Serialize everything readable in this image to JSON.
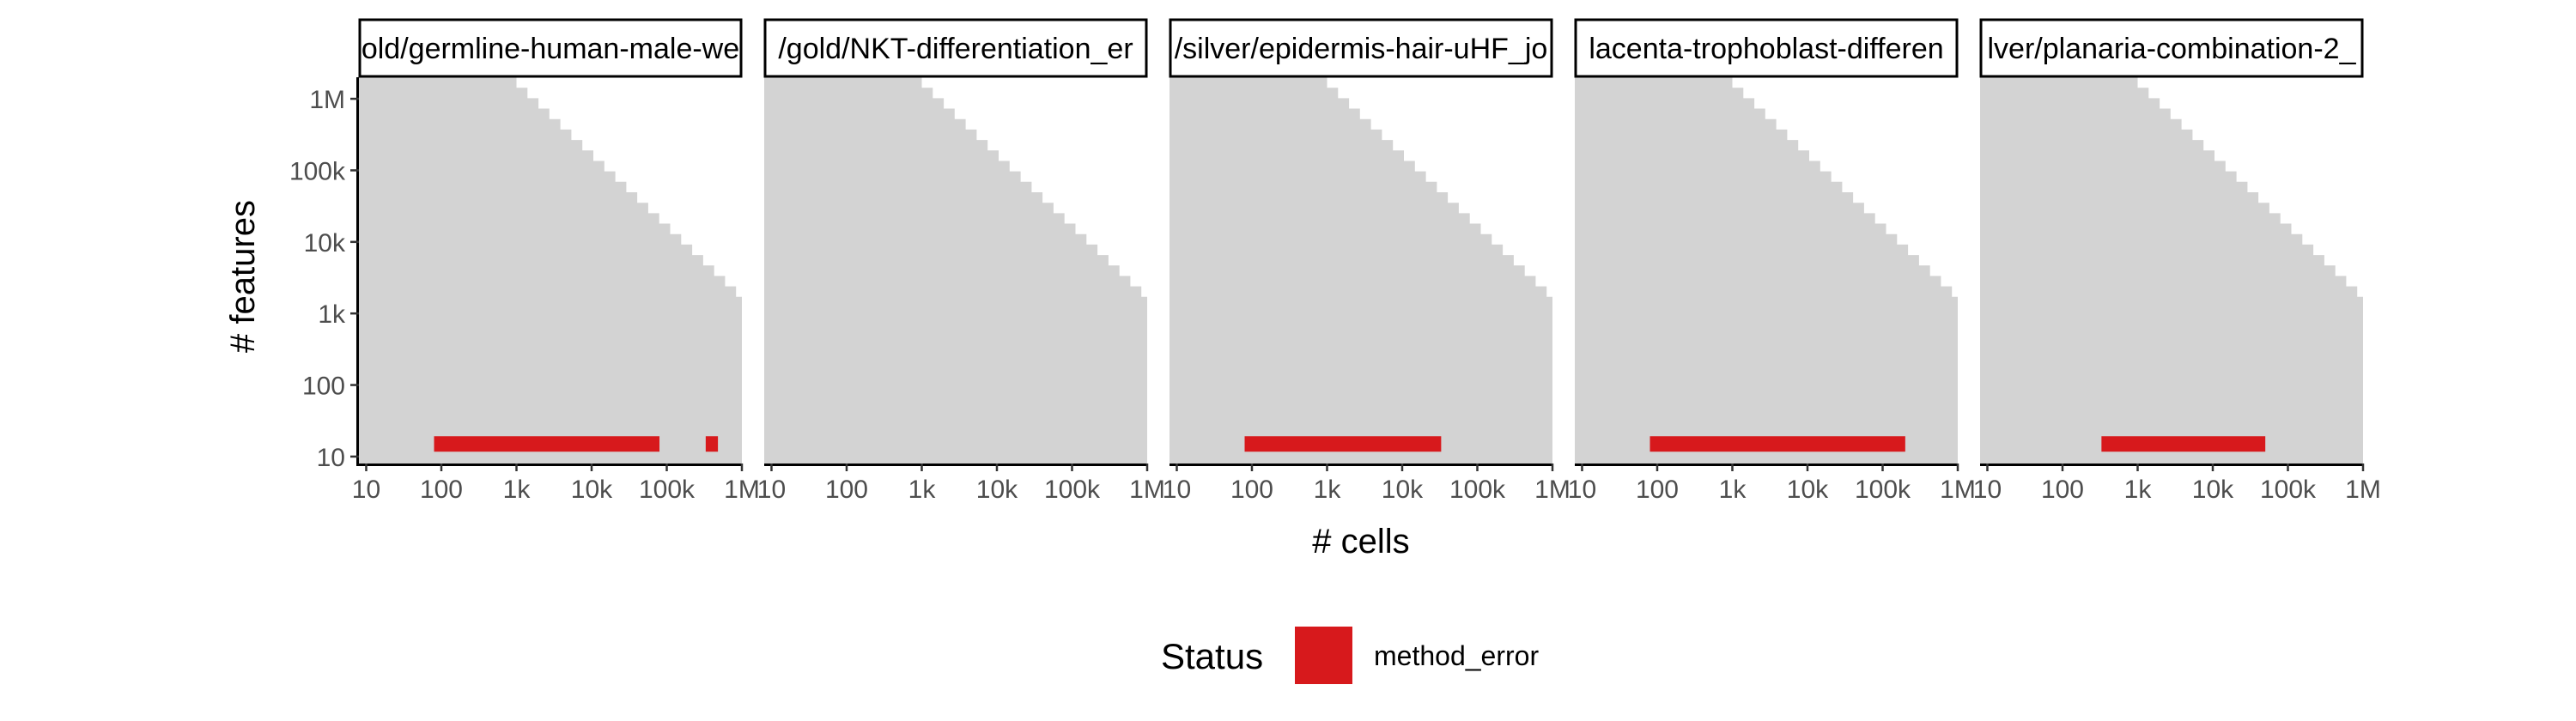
{
  "chart_data": {
    "type": "faceted-range",
    "xlabel": "# cells",
    "ylabel": "# features",
    "x_scale": "log10",
    "y_scale": "log10",
    "xlim": [
      8,
      1000000
    ],
    "ylim": [
      8,
      2000000
    ],
    "x_ticks": [
      {
        "value": 10,
        "label": "10"
      },
      {
        "value": 100,
        "label": "100"
      },
      {
        "value": 1000,
        "label": "1k"
      },
      {
        "value": 10000,
        "label": "10k"
      },
      {
        "value": 100000,
        "label": "100k"
      },
      {
        "value": 1000000,
        "label": "1M"
      }
    ],
    "y_ticks": [
      {
        "value": 10,
        "label": "10"
      },
      {
        "value": 100,
        "label": "100"
      },
      {
        "value": 1000,
        "label": "1k"
      },
      {
        "value": 10000,
        "label": "10k"
      },
      {
        "value": 100000,
        "label": "100k"
      },
      {
        "value": 1000000,
        "label": "1M"
      }
    ],
    "background_region": {
      "description": "feasible region: cells x features within limit (staircase)",
      "color": "#d3d3d3",
      "staircase_x_start": 1000,
      "staircase_y_top": 2000000,
      "step_factor": 1.4
    },
    "status_legend": {
      "title": "Status",
      "items": [
        {
          "name": "method_error",
          "color": "#d7191c"
        }
      ]
    },
    "facets": [
      {
        "label": "old/germline-human-male-we",
        "error_ranges": [
          {
            "x_start": 80,
            "x_end": 80000,
            "y": 15
          },
          {
            "x_start": 330000,
            "x_end": 480000,
            "y": 15
          }
        ]
      },
      {
        "label": "/gold/NKT-differentiation_er",
        "error_ranges": []
      },
      {
        "label": "/silver/epidermis-hair-uHF_jo",
        "error_ranges": [
          {
            "x_start": 80,
            "x_end": 33000,
            "y": 15
          }
        ]
      },
      {
        "label": "lacenta-trophoblast-differen",
        "error_ranges": [
          {
            "x_start": 80,
            "x_end": 200000,
            "y": 15
          }
        ]
      },
      {
        "label": "lver/planaria-combination-2_",
        "error_ranges": [
          {
            "x_start": 330,
            "x_end": 50000,
            "y": 15
          }
        ]
      }
    ]
  }
}
